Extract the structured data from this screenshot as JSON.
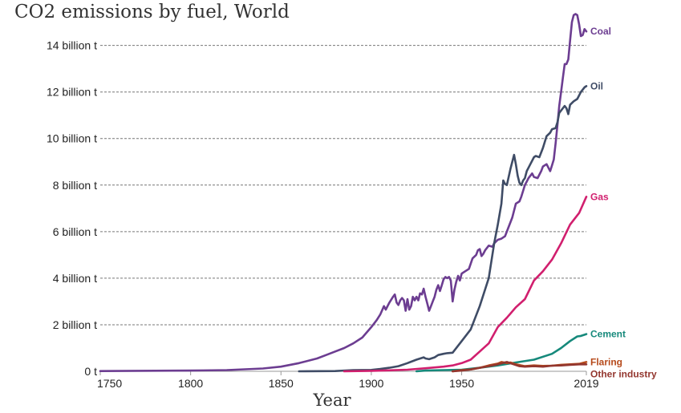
{
  "chart_data": {
    "type": "line",
    "title": "CO2 emissions by fuel, World",
    "xlabel": "Year",
    "ylabel": "",
    "xlim": [
      1750,
      2019
    ],
    "ylim": [
      0,
      15.4
    ],
    "x_ticks": [
      {
        "value": 1750,
        "label": "1750"
      },
      {
        "value": 1800,
        "label": "1800"
      },
      {
        "value": 1850,
        "label": "1850"
      },
      {
        "value": 1900,
        "label": "1900"
      },
      {
        "value": 1950,
        "label": "1950"
      },
      {
        "value": 2019,
        "label": "2019"
      }
    ],
    "y_ticks": [
      {
        "value": 0,
        "label": "0 t"
      },
      {
        "value": 2,
        "label": "2 billion t"
      },
      {
        "value": 4,
        "label": "4 billion t"
      },
      {
        "value": 6,
        "label": "6 billion t"
      },
      {
        "value": 8,
        "label": "8 billion t"
      },
      {
        "value": 10,
        "label": "10 billion t"
      },
      {
        "value": 12,
        "label": "12 billion t"
      },
      {
        "value": 14,
        "label": "14 billion t"
      }
    ],
    "grid": "horizontal dashed",
    "legend": "inline labels at line ends",
    "series": [
      {
        "name": "Coal",
        "color": "#6c3d91",
        "points": [
          [
            1750,
            0.01
          ],
          [
            1800,
            0.03
          ],
          [
            1820,
            0.05
          ],
          [
            1840,
            0.12
          ],
          [
            1850,
            0.2
          ],
          [
            1860,
            0.35
          ],
          [
            1870,
            0.55
          ],
          [
            1875,
            0.7
          ],
          [
            1880,
            0.85
          ],
          [
            1885,
            1.0
          ],
          [
            1890,
            1.2
          ],
          [
            1895,
            1.45
          ],
          [
            1900,
            1.9
          ],
          [
            1903,
            2.2
          ],
          [
            1905,
            2.45
          ],
          [
            1907,
            2.8
          ],
          [
            1908,
            2.65
          ],
          [
            1910,
            2.95
          ],
          [
            1912,
            3.2
          ],
          [
            1913,
            3.3
          ],
          [
            1914,
            2.95
          ],
          [
            1915,
            2.85
          ],
          [
            1916,
            3.05
          ],
          [
            1917,
            3.15
          ],
          [
            1918,
            3.05
          ],
          [
            1919,
            2.6
          ],
          [
            1920,
            3.1
          ],
          [
            1921,
            2.65
          ],
          [
            1922,
            2.8
          ],
          [
            1923,
            3.2
          ],
          [
            1924,
            3.05
          ],
          [
            1925,
            3.2
          ],
          [
            1926,
            3.05
          ],
          [
            1927,
            3.35
          ],
          [
            1928,
            3.3
          ],
          [
            1929,
            3.55
          ],
          [
            1930,
            3.2
          ],
          [
            1931,
            2.9
          ],
          [
            1932,
            2.6
          ],
          [
            1933,
            2.8
          ],
          [
            1934,
            3.0
          ],
          [
            1935,
            3.2
          ],
          [
            1936,
            3.5
          ],
          [
            1937,
            3.7
          ],
          [
            1938,
            3.45
          ],
          [
            1939,
            3.7
          ],
          [
            1940,
            3.95
          ],
          [
            1941,
            4.05
          ],
          [
            1942,
            4.0
          ],
          [
            1943,
            4.05
          ],
          [
            1944,
            3.9
          ],
          [
            1945,
            3.0
          ],
          [
            1946,
            3.5
          ],
          [
            1947,
            3.85
          ],
          [
            1948,
            4.1
          ],
          [
            1949,
            3.9
          ],
          [
            1950,
            4.2
          ],
          [
            1952,
            4.3
          ],
          [
            1954,
            4.4
          ],
          [
            1956,
            4.85
          ],
          [
            1958,
            5.0
          ],
          [
            1959,
            5.2
          ],
          [
            1960,
            5.25
          ],
          [
            1961,
            4.95
          ],
          [
            1962,
            5.05
          ],
          [
            1963,
            5.2
          ],
          [
            1965,
            5.4
          ],
          [
            1967,
            5.35
          ],
          [
            1968,
            5.5
          ],
          [
            1970,
            5.65
          ],
          [
            1972,
            5.7
          ],
          [
            1974,
            5.8
          ],
          [
            1976,
            6.2
          ],
          [
            1978,
            6.6
          ],
          [
            1980,
            7.2
          ],
          [
            1982,
            7.3
          ],
          [
            1983,
            7.5
          ],
          [
            1985,
            8.0
          ],
          [
            1987,
            8.3
          ],
          [
            1989,
            8.5
          ],
          [
            1990,
            8.35
          ],
          [
            1992,
            8.3
          ],
          [
            1994,
            8.6
          ],
          [
            1995,
            8.8
          ],
          [
            1997,
            8.9
          ],
          [
            1999,
            8.6
          ],
          [
            2000,
            8.85
          ],
          [
            2001,
            9.1
          ],
          [
            2002,
            9.8
          ],
          [
            2003,
            10.6
          ],
          [
            2004,
            11.4
          ],
          [
            2005,
            12.0
          ],
          [
            2006,
            12.6
          ],
          [
            2007,
            13.2
          ],
          [
            2008,
            13.2
          ],
          [
            2009,
            13.4
          ],
          [
            2010,
            14.2
          ],
          [
            2011,
            15.0
          ],
          [
            2012,
            15.3
          ],
          [
            2013,
            15.35
          ],
          [
            2014,
            15.3
          ],
          [
            2015,
            14.9
          ],
          [
            2016,
            14.4
          ],
          [
            2017,
            14.45
          ],
          [
            2018,
            14.7
          ],
          [
            2019,
            14.6
          ]
        ]
      },
      {
        "name": "Oil",
        "color": "#3f4c66",
        "points": [
          [
            1860,
            0.0
          ],
          [
            1880,
            0.01
          ],
          [
            1890,
            0.05
          ],
          [
            1900,
            0.06
          ],
          [
            1905,
            0.1
          ],
          [
            1910,
            0.15
          ],
          [
            1915,
            0.22
          ],
          [
            1920,
            0.35
          ],
          [
            1925,
            0.5
          ],
          [
            1929,
            0.6
          ],
          [
            1930,
            0.55
          ],
          [
            1932,
            0.52
          ],
          [
            1935,
            0.6
          ],
          [
            1937,
            0.7
          ],
          [
            1940,
            0.75
          ],
          [
            1942,
            0.78
          ],
          [
            1945,
            0.8
          ],
          [
            1950,
            1.3
          ],
          [
            1955,
            1.8
          ],
          [
            1960,
            2.8
          ],
          [
            1965,
            4.0
          ],
          [
            1968,
            5.5
          ],
          [
            1970,
            6.3
          ],
          [
            1972,
            7.2
          ],
          [
            1973,
            8.2
          ],
          [
            1974,
            8.05
          ],
          [
            1975,
            8.0
          ],
          [
            1977,
            8.7
          ],
          [
            1979,
            9.3
          ],
          [
            1980,
            8.9
          ],
          [
            1981,
            8.4
          ],
          [
            1982,
            8.1
          ],
          [
            1983,
            8.0
          ],
          [
            1984,
            8.2
          ],
          [
            1985,
            8.3
          ],
          [
            1986,
            8.6
          ],
          [
            1988,
            8.9
          ],
          [
            1990,
            9.2
          ],
          [
            1991,
            9.25
          ],
          [
            1993,
            9.2
          ],
          [
            1995,
            9.6
          ],
          [
            1997,
            10.1
          ],
          [
            1999,
            10.25
          ],
          [
            2000,
            10.4
          ],
          [
            2002,
            10.45
          ],
          [
            2003,
            10.7
          ],
          [
            2004,
            11.1
          ],
          [
            2006,
            11.3
          ],
          [
            2007,
            11.4
          ],
          [
            2008,
            11.3
          ],
          [
            2009,
            11.05
          ],
          [
            2010,
            11.45
          ],
          [
            2012,
            11.6
          ],
          [
            2014,
            11.7
          ],
          [
            2016,
            12.0
          ],
          [
            2018,
            12.2
          ],
          [
            2019,
            12.25
          ]
        ]
      },
      {
        "name": "Gas",
        "color": "#d11f6e",
        "points": [
          [
            1885,
            0.0
          ],
          [
            1900,
            0.02
          ],
          [
            1910,
            0.04
          ],
          [
            1920,
            0.07
          ],
          [
            1930,
            0.13
          ],
          [
            1940,
            0.2
          ],
          [
            1945,
            0.25
          ],
          [
            1950,
            0.35
          ],
          [
            1955,
            0.5
          ],
          [
            1960,
            0.85
          ],
          [
            1965,
            1.2
          ],
          [
            1970,
            1.9
          ],
          [
            1975,
            2.3
          ],
          [
            1980,
            2.75
          ],
          [
            1985,
            3.1
          ],
          [
            1990,
            3.9
          ],
          [
            1995,
            4.3
          ],
          [
            2000,
            4.8
          ],
          [
            2005,
            5.5
          ],
          [
            2010,
            6.3
          ],
          [
            2015,
            6.8
          ],
          [
            2019,
            7.5
          ]
        ]
      },
      {
        "name": "Cement",
        "color": "#16897b",
        "points": [
          [
            1925,
            0.0
          ],
          [
            1930,
            0.03
          ],
          [
            1940,
            0.05
          ],
          [
            1950,
            0.07
          ],
          [
            1960,
            0.15
          ],
          [
            1970,
            0.25
          ],
          [
            1980,
            0.38
          ],
          [
            1990,
            0.5
          ],
          [
            2000,
            0.75
          ],
          [
            2005,
            1.0
          ],
          [
            2010,
            1.3
          ],
          [
            2014,
            1.5
          ],
          [
            2016,
            1.52
          ],
          [
            2019,
            1.6
          ]
        ]
      },
      {
        "name": "Flaring",
        "color": "#b64a1b",
        "points": [
          [
            1945,
            0.0
          ],
          [
            1950,
            0.05
          ],
          [
            1955,
            0.08
          ],
          [
            1960,
            0.15
          ],
          [
            1965,
            0.25
          ],
          [
            1970,
            0.33
          ],
          [
            1972,
            0.4
          ],
          [
            1975,
            0.35
          ],
          [
            1977,
            0.38
          ],
          [
            1980,
            0.3
          ],
          [
            1985,
            0.22
          ],
          [
            1990,
            0.25
          ],
          [
            1995,
            0.23
          ],
          [
            2000,
            0.24
          ],
          [
            2005,
            0.28
          ],
          [
            2010,
            0.3
          ],
          [
            2015,
            0.32
          ],
          [
            2019,
            0.4
          ]
        ]
      },
      {
        "name": "Other industry",
        "color": "#93362e",
        "points": [
          [
            1945,
            0.0
          ],
          [
            1950,
            0.03
          ],
          [
            1955,
            0.08
          ],
          [
            1960,
            0.15
          ],
          [
            1965,
            0.22
          ],
          [
            1970,
            0.3
          ],
          [
            1975,
            0.4
          ],
          [
            1978,
            0.32
          ],
          [
            1982,
            0.22
          ],
          [
            1985,
            0.2
          ],
          [
            1990,
            0.22
          ],
          [
            1995,
            0.2
          ],
          [
            2000,
            0.24
          ],
          [
            2005,
            0.25
          ],
          [
            2010,
            0.28
          ],
          [
            2015,
            0.3
          ],
          [
            2019,
            0.3
          ]
        ]
      }
    ]
  }
}
